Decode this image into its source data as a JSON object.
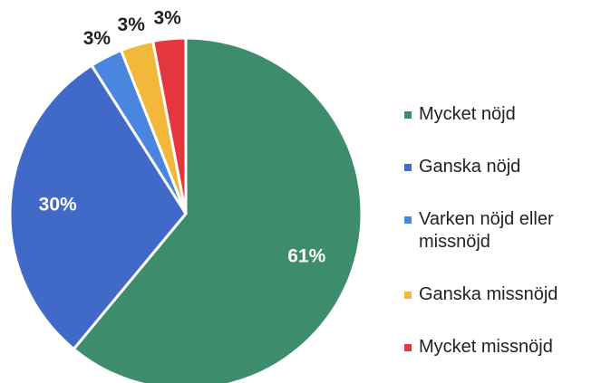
{
  "chart_data": {
    "type": "pie",
    "categories": [
      "Mycket nöjd",
      "Ganska nöjd",
      "Varken nöjd eller missnöjd",
      "Ganska missnöjd",
      "Mycket missnöjd"
    ],
    "values": [
      61,
      30,
      3,
      3,
      3
    ],
    "value_labels": [
      "61%",
      "30%",
      "3%",
      "3%",
      "3%"
    ],
    "colors": [
      "#3d8c6c",
      "#4169c8",
      "#4a86e0",
      "#f2b83a",
      "#e5383e"
    ],
    "legend": "right"
  }
}
